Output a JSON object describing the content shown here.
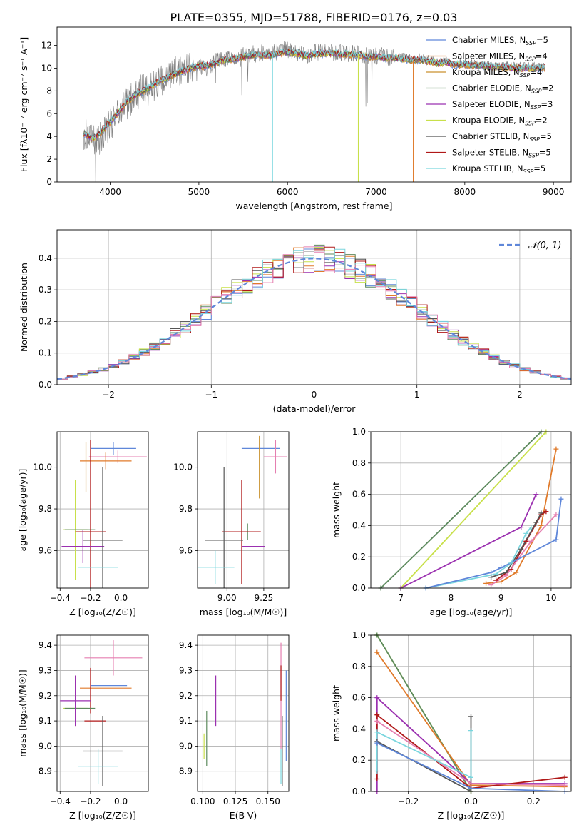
{
  "figure": {
    "title": "PLATE=0355, MJD=51788, FIBERID=0176, z=0.03"
  },
  "colors": {
    "blue": "#5f87d9",
    "orange": "#e07a2a",
    "gold": "#c9912e",
    "green": "#5d8a5e",
    "purple": "#9b30b0",
    "lime": "#c8e04a",
    "darkgray": "#555555",
    "red": "#b01818",
    "cyan": "#7ad6de",
    "pink": "#e57fb0",
    "gray": "#808080"
  },
  "chart_data": [
    {
      "id": "spectrum",
      "type": "line",
      "xlabel": "wavelength [Angstrom, rest frame]",
      "ylabel": "Flux [fλ10⁻¹⁷ erg cm⁻² s⁻¹ A⁻¹]",
      "xlim": [
        3400,
        9200
      ],
      "ylim": [
        0,
        13.6
      ],
      "xticks": [
        4000,
        5000,
        6000,
        7000,
        8000,
        9000
      ],
      "yticks": [
        0,
        2,
        4,
        6,
        8,
        10,
        12
      ],
      "grid": false,
      "legend_position": "top-right",
      "observed": {
        "color": "#808080",
        "x": [
          3700,
          3800,
          3900,
          4000,
          4100,
          4200,
          4300,
          4400,
          4500,
          4600,
          4700,
          4800,
          4900,
          5000,
          5100,
          5200,
          5300,
          5400,
          5500,
          5600,
          5700,
          5800,
          5900,
          6000,
          6100,
          6200,
          6300,
          6400,
          6500,
          6600,
          6700,
          6800,
          6900,
          7000,
          7100,
          7200,
          7300,
          7400,
          7500,
          7600,
          7700,
          7800,
          7900,
          8000,
          8200,
          8400,
          8600,
          8800,
          8900
        ],
        "y": [
          4.3,
          3.5,
          4.0,
          5.0,
          6.3,
          7.0,
          7.8,
          8.1,
          8.5,
          8.8,
          9.5,
          9.8,
          10.0,
          10.3,
          10.0,
          10.6,
          10.8,
          10.9,
          11.2,
          11.2,
          11.4,
          11.2,
          11.5,
          11.6,
          11.4,
          11.2,
          11.3,
          11.5,
          11.4,
          11.3,
          11.2,
          11.3,
          11.0,
          11.1,
          11.0,
          10.9,
          11.0,
          10.8,
          10.9,
          10.8,
          10.5,
          10.6,
          10.4,
          10.4,
          10.3,
          10.2,
          10.2,
          10.1,
          10.1
        ]
      },
      "model": {
        "x": [
          3700,
          3800,
          3900,
          4000,
          4100,
          4200,
          4300,
          4400,
          4500,
          4600,
          4700,
          4800,
          4900,
          5000,
          5100,
          5200,
          5300,
          5400,
          5500,
          5600,
          5700,
          5800,
          5900,
          6000,
          6100,
          6200,
          6300,
          6400,
          6500,
          6600,
          6700,
          6800,
          6900,
          7000,
          7100,
          7200,
          7300,
          7400,
          7500,
          7600,
          7700,
          7800,
          7900,
          8000,
          8200,
          8400,
          8600,
          8800,
          8900
        ],
        "y": [
          4.3,
          3.8,
          4.4,
          5.3,
          6.2,
          7.1,
          7.7,
          8.1,
          8.6,
          9.0,
          9.4,
          9.7,
          10.0,
          10.2,
          10.2,
          10.5,
          10.7,
          10.8,
          11.0,
          11.1,
          11.2,
          11.1,
          11.3,
          11.4,
          11.3,
          11.1,
          11.2,
          11.3,
          11.3,
          11.2,
          11.2,
          11.2,
          11.0,
          11.0,
          10.9,
          10.9,
          10.8,
          10.7,
          10.7,
          10.6,
          10.4,
          10.5,
          10.3,
          10.3,
          10.2,
          10.1,
          10.0,
          10.0,
          10.0
        ]
      },
      "series": [
        {
          "name": "Chabrier MILES, N",
          "sub": "SSP",
          "suffix": "=5",
          "color": "#5f87d9"
        },
        {
          "name": "Salpeter MILES, N",
          "sub": "SSP",
          "suffix": "=4",
          "color": "#e07a2a"
        },
        {
          "name": "Kroupa MILES, N",
          "sub": "SSP",
          "suffix": "=4",
          "color": "#c9912e"
        },
        {
          "name": "Chabrier ELODIE, N",
          "sub": "SSP",
          "suffix": "=2",
          "color": "#5d8a5e"
        },
        {
          "name": "Salpeter ELODIE, N",
          "sub": "SSP",
          "suffix": "=3",
          "color": "#9b30b0"
        },
        {
          "name": "Kroupa ELODIE, N",
          "sub": "SSP",
          "suffix": "=2",
          "color": "#c8e04a"
        },
        {
          "name": "Chabrier STELIB, N",
          "sub": "SSP",
          "suffix": "=5",
          "color": "#555555"
        },
        {
          "name": "Salpeter STELIB, N",
          "sub": "SSP",
          "suffix": "=5",
          "color": "#b01818"
        },
        {
          "name": "Kroupa STELIB, N",
          "sub": "SSP",
          "suffix": "=5",
          "color": "#7ad6de"
        }
      ],
      "dips": [
        {
          "x": 5830,
          "color": "#7ad6de"
        },
        {
          "x": 6800,
          "color": "#c8e04a"
        },
        {
          "x": 7420,
          "color": "#e07a2a"
        }
      ]
    },
    {
      "id": "residuals",
      "type": "histogram",
      "xlabel": "(data-model)/error",
      "ylabel": "Normed distribution",
      "xlim": [
        -2.5,
        2.5
      ],
      "ylim": [
        0,
        0.49
      ],
      "xticks": [
        -2,
        -1,
        0,
        1,
        2
      ],
      "yticks": [
        0.0,
        0.1,
        0.2,
        0.3,
        0.4
      ],
      "grid": true,
      "bin_width": 0.1,
      "legend_position": "top-right",
      "reference": {
        "name": "𝒩(0, 1)",
        "color": "#5f87d9",
        "style": "dashed"
      },
      "series_colors": [
        "#5f87d9",
        "#e07a2a",
        "#5d8a5e",
        "#9b30b0",
        "#c8e04a",
        "#555555",
        "#b01818",
        "#7ad6de",
        "#e57fb0"
      ]
    },
    {
      "id": "age-vs-Z",
      "type": "errorbar",
      "xlabel": "Z [log₁₀(Z/Z☉)]",
      "ylabel": "age  [log₁₀(age/yr)]",
      "xlim": [
        -0.42,
        0.18
      ],
      "ylim": [
        9.42,
        10.17
      ],
      "xticks": [
        -0.4,
        -0.2,
        0.0
      ],
      "yticks": [
        9.6,
        9.8,
        10.0
      ],
      "grid": true,
      "points": [
        {
          "x": -0.05,
          "y": 10.09,
          "xerr": 0.15,
          "yerr": 0.03,
          "color": "#5f87d9"
        },
        {
          "x": -0.02,
          "y": 10.05,
          "xerr": 0.19,
          "yerr": 0.03,
          "color": "#e57fb0"
        },
        {
          "x": -0.1,
          "y": 10.03,
          "xerr": 0.17,
          "yerr": 0.04,
          "color": "#e07a2a"
        },
        {
          "x": -0.23,
          "y": 10.0,
          "xerr": 0.0,
          "yerr": 0.12,
          "color": "#c9912e"
        },
        {
          "x": -0.3,
          "y": 9.7,
          "xerr": 0.08,
          "yerr": 0.24,
          "color": "#c8e04a"
        },
        {
          "x": -0.27,
          "y": 9.7,
          "xerr": 0.1,
          "yerr": 0.0,
          "color": "#5d8a5e"
        },
        {
          "x": -0.2,
          "y": 9.69,
          "xerr": 0.1,
          "yerr": 0.44,
          "color": "#b01818"
        },
        {
          "x": -0.25,
          "y": 9.62,
          "xerr": 0.14,
          "yerr": 0.08,
          "color": "#9b30b0"
        },
        {
          "x": -0.12,
          "y": 9.65,
          "xerr": 0.13,
          "yerr": 0.35,
          "color": "#555555"
        },
        {
          "x": -0.15,
          "y": 9.52,
          "xerr": 0.13,
          "yerr": 0.0,
          "color": "#7ad6de"
        }
      ]
    },
    {
      "id": "age-vs-mass",
      "type": "errorbar",
      "xlabel": "mass [log₁₀(M/M☉)]",
      "ylabel": "",
      "xlim": [
        8.8,
        9.42
      ],
      "ylim": [
        9.42,
        10.17
      ],
      "xticks": [
        9.0,
        9.25
      ],
      "yticks": [
        9.6,
        9.8,
        10.0
      ],
      "grid": true,
      "points": [
        {
          "x": 9.23,
          "y": 10.09,
          "xerr": 0.13,
          "yerr": 0.0,
          "color": "#5f87d9"
        },
        {
          "x": 9.33,
          "y": 10.05,
          "xerr": 0.08,
          "yerr": 0.08,
          "color": "#e57fb0"
        },
        {
          "x": 9.22,
          "y": 10.0,
          "xerr": 0.0,
          "yerr": 0.15,
          "color": "#c9912e"
        },
        {
          "x": 9.1,
          "y": 9.69,
          "xerr": 0.1,
          "yerr": 0.0,
          "color": "#c8e04a"
        },
        {
          "x": 9.14,
          "y": 9.69,
          "xerr": 0.0,
          "yerr": 0.04,
          "color": "#5d8a5e"
        },
        {
          "x": 9.1,
          "y": 9.69,
          "xerr": 0.13,
          "yerr": 0.25,
          "color": "#b01818"
        },
        {
          "x": 9.18,
          "y": 9.62,
          "xerr": 0.08,
          "yerr": 0.0,
          "color": "#9b30b0"
        },
        {
          "x": 8.98,
          "y": 9.65,
          "xerr": 0.13,
          "yerr": 0.35,
          "color": "#555555"
        },
        {
          "x": 8.92,
          "y": 9.52,
          "xerr": 0.13,
          "yerr": 0.08,
          "color": "#7ad6de"
        }
      ]
    },
    {
      "id": "weight-vs-age",
      "type": "line",
      "xlabel": "age  [log₁₀(age/yr)]",
      "ylabel": "mass weight",
      "xlim": [
        6.4,
        10.4
      ],
      "ylim": [
        0,
        1.0
      ],
      "xticks": [
        7,
        8,
        9,
        10
      ],
      "yticks": [
        0.0,
        0.2,
        0.4,
        0.6,
        0.8,
        1.0
      ],
      "grid": true,
      "series": [
        {
          "color": "#5d8a5e",
          "x": [
            6.6,
            9.8
          ],
          "y": [
            0.0,
            1.0
          ]
        },
        {
          "color": "#c8e04a",
          "x": [
            7.0,
            9.9
          ],
          "y": [
            0.0,
            1.0
          ]
        },
        {
          "color": "#e07a2a",
          "x": [
            8.7,
            9.0,
            9.3,
            9.8,
            10.1
          ],
          "y": [
            0.03,
            0.04,
            0.1,
            0.4,
            0.89
          ]
        },
        {
          "color": "#9b30b0",
          "x": [
            7.0,
            9.4,
            9.7
          ],
          "y": [
            0.0,
            0.39,
            0.6
          ]
        },
        {
          "color": "#b01818",
          "x": [
            8.9,
            9.2,
            9.5,
            9.8,
            9.9
          ],
          "y": [
            0.05,
            0.12,
            0.3,
            0.47,
            0.49
          ]
        },
        {
          "color": "#555555",
          "x": [
            8.8,
            9.1,
            9.4,
            9.7,
            9.8
          ],
          "y": [
            0.07,
            0.1,
            0.25,
            0.42,
            0.48
          ]
        },
        {
          "color": "#7ad6de",
          "x": [
            7.5,
            8.9,
            9.2,
            9.5,
            9.6
          ],
          "y": [
            0.0,
            0.09,
            0.16,
            0.35,
            0.39
          ]
        },
        {
          "color": "#e57fb0",
          "x": [
            8.8,
            9.1,
            9.6,
            10.1
          ],
          "y": [
            0.02,
            0.08,
            0.3,
            0.47
          ]
        },
        {
          "color": "#5f87d9",
          "x": [
            7.5,
            8.8,
            9.0,
            10.1,
            10.2
          ],
          "y": [
            0.0,
            0.1,
            0.13,
            0.31,
            0.57
          ]
        }
      ]
    },
    {
      "id": "mass-vs-Z",
      "type": "errorbar",
      "xlabel": "Z [log₁₀(Z/Z☉)]",
      "ylabel": "mass [log₁₀(M/M☉)]",
      "xlim": [
        -0.42,
        0.18
      ],
      "ylim": [
        8.82,
        9.44
      ],
      "xticks": [
        -0.4,
        -0.2,
        0.0
      ],
      "yticks": [
        8.9,
        9.0,
        9.1,
        9.2,
        9.3,
        9.4
      ],
      "grid": true,
      "points": [
        {
          "x": -0.05,
          "y": 9.35,
          "xerr": 0.19,
          "yerr": 0.07,
          "color": "#e57fb0"
        },
        {
          "x": -0.08,
          "y": 9.24,
          "xerr": 0.12,
          "yerr": 0.0,
          "color": "#5f87d9"
        },
        {
          "x": -0.1,
          "y": 9.23,
          "xerr": 0.17,
          "yerr": 0.0,
          "color": "#e07a2a"
        },
        {
          "x": -0.2,
          "y": 9.22,
          "xerr": 0.0,
          "yerr": 0.09,
          "color": "#b01818"
        },
        {
          "x": -0.3,
          "y": 9.15,
          "xerr": 0.08,
          "yerr": 0.07,
          "color": "#c8e04a"
        },
        {
          "x": -0.27,
          "y": 9.15,
          "xerr": 0.1,
          "yerr": 0.0,
          "color": "#5d8a5e"
        },
        {
          "x": -0.3,
          "y": 9.18,
          "xerr": 0.1,
          "yerr": 0.1,
          "color": "#9b30b0"
        },
        {
          "x": -0.17,
          "y": 9.1,
          "xerr": 0.07,
          "yerr": 0.0,
          "color": "#b01818"
        },
        {
          "x": -0.12,
          "y": 8.98,
          "xerr": 0.13,
          "yerr": 0.14,
          "color": "#555555"
        },
        {
          "x": -0.15,
          "y": 8.92,
          "xerr": 0.13,
          "yerr": 0.07,
          "color": "#7ad6de"
        }
      ]
    },
    {
      "id": "mass-vs-ebv",
      "type": "errorbar",
      "xlabel": "E(B-V)",
      "ylabel": "",
      "xlim": [
        0.096,
        0.166
      ],
      "ylim": [
        8.82,
        9.44
      ],
      "xticks": [
        0.1,
        0.125,
        0.15
      ],
      "xtick_labels": [
        "0.100",
        "0.125",
        "0.150"
      ],
      "yticks": [
        8.9,
        9.0,
        9.1,
        9.2,
        9.3,
        9.4
      ],
      "grid": true,
      "points": [
        {
          "x": 0.101,
          "y": 9.0,
          "xerr": 0.0,
          "yerr": 0.05,
          "color": "#c8e04a"
        },
        {
          "x": 0.103,
          "y": 9.03,
          "xerr": 0.0,
          "yerr": 0.11,
          "color": "#5d8a5e"
        },
        {
          "x": 0.11,
          "y": 9.18,
          "xerr": 0.0,
          "yerr": 0.1,
          "color": "#9b30b0"
        },
        {
          "x": 0.16,
          "y": 9.2,
          "xerr": 0.0,
          "yerr": 0.21,
          "color": "#e57fb0"
        },
        {
          "x": 0.16,
          "y": 9.25,
          "xerr": 0.0,
          "yerr": 0.07,
          "color": "#b01818"
        },
        {
          "x": 0.161,
          "y": 8.98,
          "xerr": 0.0,
          "yerr": 0.14,
          "color": "#555555"
        },
        {
          "x": 0.16,
          "y": 8.92,
          "xerr": 0.0,
          "yerr": 0.07,
          "color": "#7ad6de"
        },
        {
          "x": 0.164,
          "y": 9.12,
          "xerr": 0.0,
          "yerr": 0.18,
          "color": "#5f87d9"
        }
      ]
    },
    {
      "id": "weight-vs-Z",
      "type": "line",
      "xlabel": "Z [log₁₀(Z/Z☉)]",
      "ylabel": "mass weight",
      "xlim": [
        -0.32,
        0.32
      ],
      "ylim": [
        0,
        1.0
      ],
      "xticks": [
        -0.2,
        0.0,
        0.2
      ],
      "yticks": [
        0.0,
        0.2,
        0.4,
        0.6,
        0.8,
        1.0
      ],
      "grid": true,
      "series": [
        {
          "color": "#c8e04a",
          "x": [
            -0.3,
            0.0
          ],
          "y": [
            1.0,
            0.0
          ]
        },
        {
          "color": "#5d8a5e",
          "x": [
            -0.3,
            0.0
          ],
          "y": [
            1.0,
            0.0
          ]
        },
        {
          "color": "#e07a2a",
          "x": [
            -0.3,
            0.0,
            0.3
          ],
          "y": [
            0.89,
            0.04,
            0.03
          ]
        },
        {
          "color": "#9b30b0",
          "x": [
            -0.3,
            -0.3,
            0.0,
            0.3
          ],
          "y": [
            0.0,
            0.6,
            0.05,
            0.05
          ]
        },
        {
          "color": "#b01818",
          "x": [
            -0.3,
            -0.3,
            0.0,
            0.3
          ],
          "y": [
            0.08,
            0.49,
            0.02,
            0.09
          ]
        },
        {
          "color": "#e57fb0",
          "x": [
            -0.3,
            0.0,
            0.3
          ],
          "y": [
            0.45,
            0.05,
            0.04
          ]
        },
        {
          "color": "#555555",
          "x": [
            -0.3,
            0.0,
            0.0
          ],
          "y": [
            0.32,
            0.0,
            0.48
          ]
        },
        {
          "color": "#7ad6de",
          "x": [
            -0.3,
            -0.3,
            0.0,
            0.0
          ],
          "y": [
            0.13,
            0.38,
            0.09,
            0.39
          ]
        },
        {
          "color": "#5f87d9",
          "x": [
            -0.3,
            0.0,
            0.3
          ],
          "y": [
            0.31,
            0.02,
            0.0
          ]
        }
      ]
    }
  ]
}
